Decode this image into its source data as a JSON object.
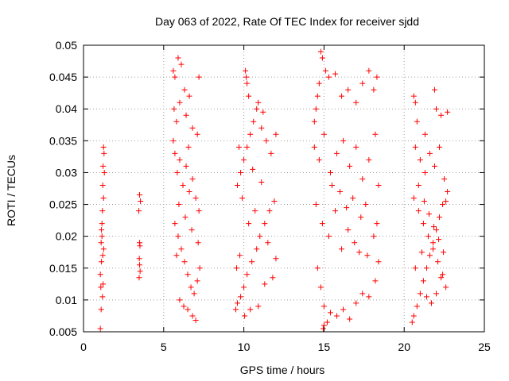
{
  "chart_data": {
    "type": "scatter",
    "title": "Day 063 of 2022, Rate Of TEC Index for receiver sjdd",
    "xlabel": "GPS time / hours",
    "ylabel": "ROTI / TECUs",
    "xlim": [
      0,
      25
    ],
    "ylim": [
      0.005,
      0.05
    ],
    "x_ticks": [
      "0",
      "5",
      "10",
      "15",
      "20",
      "25"
    ],
    "y_ticks": [
      "0.005",
      "0.01",
      "0.015",
      "0.02",
      "0.025",
      "0.03",
      "0.035",
      "0.04",
      "0.045",
      "0.05"
    ],
    "grid": true,
    "marker": "+",
    "color": "#ff0000",
    "series": [
      {
        "points": [
          [
            1.05,
            0.0055
          ],
          [
            1.1,
            0.0085
          ],
          [
            1.08,
            0.012
          ],
          [
            1.12,
            0.016
          ],
          [
            1.15,
            0.02
          ],
          [
            1.18,
            0.024
          ],
          [
            1.2,
            0.028
          ],
          [
            1.22,
            0.031
          ],
          [
            1.25,
            0.034
          ],
          [
            1.1,
            0.019
          ],
          [
            1.15,
            0.022
          ],
          [
            1.2,
            0.017
          ],
          [
            1.25,
            0.026
          ],
          [
            1.3,
            0.03
          ],
          [
            1.28,
            0.033
          ],
          [
            1.05,
            0.014
          ],
          [
            1.12,
            0.021
          ],
          [
            1.18,
            0.0105
          ],
          [
            1.22,
            0.0125
          ],
          [
            1.26,
            0.018
          ],
          [
            3.5,
            0.0265
          ],
          [
            3.55,
            0.0255
          ],
          [
            3.45,
            0.024
          ],
          [
            3.5,
            0.019
          ],
          [
            3.52,
            0.0185
          ],
          [
            3.48,
            0.0165
          ],
          [
            3.5,
            0.0155
          ],
          [
            3.53,
            0.0145
          ],
          [
            3.47,
            0.0135
          ],
          [
            5.6,
            0.046
          ],
          [
            5.7,
            0.045
          ],
          [
            5.9,
            0.048
          ],
          [
            6.1,
            0.047
          ],
          [
            6.3,
            0.043
          ],
          [
            6.6,
            0.042
          ],
          [
            7.2,
            0.045
          ],
          [
            5.65,
            0.04
          ],
          [
            5.8,
            0.038
          ],
          [
            6.0,
            0.041
          ],
          [
            6.4,
            0.039
          ],
          [
            6.8,
            0.037
          ],
          [
            7.1,
            0.036
          ],
          [
            5.6,
            0.035
          ],
          [
            5.7,
            0.033
          ],
          [
            5.85,
            0.03
          ],
          [
            6.0,
            0.032
          ],
          [
            6.2,
            0.028
          ],
          [
            6.4,
            0.031
          ],
          [
            6.6,
            0.027
          ],
          [
            6.8,
            0.029
          ],
          [
            7.0,
            0.026
          ],
          [
            7.2,
            0.024
          ],
          [
            5.7,
            0.022
          ],
          [
            5.9,
            0.02
          ],
          [
            6.1,
            0.018
          ],
          [
            6.3,
            0.016
          ],
          [
            6.5,
            0.014
          ],
          [
            6.7,
            0.012
          ],
          [
            6.9,
            0.011
          ],
          [
            7.1,
            0.013
          ],
          [
            7.25,
            0.015
          ],
          [
            5.8,
            0.017
          ],
          [
            6.0,
            0.01
          ],
          [
            6.25,
            0.009
          ],
          [
            6.5,
            0.0085
          ],
          [
            6.8,
            0.0075
          ],
          [
            7.0,
            0.0068
          ],
          [
            5.95,
            0.025
          ],
          [
            6.35,
            0.023
          ],
          [
            6.75,
            0.021
          ],
          [
            7.15,
            0.019
          ],
          [
            6.55,
            0.034
          ],
          [
            9.5,
            0.0085
          ],
          [
            9.6,
            0.0095
          ],
          [
            9.8,
            0.0105
          ],
          [
            10.0,
            0.012
          ],
          [
            10.2,
            0.014
          ],
          [
            10.5,
            0.016
          ],
          [
            10.8,
            0.018
          ],
          [
            11.0,
            0.02
          ],
          [
            11.3,
            0.022
          ],
          [
            11.6,
            0.024
          ],
          [
            11.9,
            0.0255
          ],
          [
            9.6,
            0.028
          ],
          [
            9.8,
            0.03
          ],
          [
            10.0,
            0.032
          ],
          [
            10.2,
            0.034
          ],
          [
            10.4,
            0.036
          ],
          [
            10.6,
            0.038
          ],
          [
            10.8,
            0.04
          ],
          [
            11.1,
            0.037
          ],
          [
            11.4,
            0.035
          ],
          [
            11.7,
            0.033
          ],
          [
            12.0,
            0.036
          ],
          [
            10.1,
            0.046
          ],
          [
            10.15,
            0.045
          ],
          [
            10.2,
            0.044
          ],
          [
            10.3,
            0.042
          ],
          [
            10.9,
            0.041
          ],
          [
            11.2,
            0.0395
          ],
          [
            9.7,
            0.034
          ],
          [
            9.9,
            0.026
          ],
          [
            10.3,
            0.022
          ],
          [
            10.7,
            0.024
          ],
          [
            11.5,
            0.019
          ],
          [
            9.55,
            0.015
          ],
          [
            9.75,
            0.017
          ],
          [
            10.05,
            0.0075
          ],
          [
            10.4,
            0.0085
          ],
          [
            10.9,
            0.009
          ],
          [
            11.3,
            0.0125
          ],
          [
            11.8,
            0.0135
          ],
          [
            12.0,
            0.0165
          ],
          [
            11.1,
            0.0285
          ],
          [
            10.55,
            0.0305
          ],
          [
            14.4,
            0.038
          ],
          [
            14.5,
            0.04
          ],
          [
            14.6,
            0.042
          ],
          [
            14.7,
            0.044
          ],
          [
            14.8,
            0.049
          ],
          [
            14.9,
            0.048
          ],
          [
            15.1,
            0.046
          ],
          [
            15.3,
            0.045
          ],
          [
            15.7,
            0.0455
          ],
          [
            16.1,
            0.042
          ],
          [
            16.5,
            0.043
          ],
          [
            17.0,
            0.041
          ],
          [
            17.4,
            0.044
          ],
          [
            17.8,
            0.046
          ],
          [
            18.1,
            0.043
          ],
          [
            18.3,
            0.045
          ],
          [
            14.4,
            0.034
          ],
          [
            14.7,
            0.032
          ],
          [
            15.0,
            0.036
          ],
          [
            15.4,
            0.03
          ],
          [
            15.8,
            0.033
          ],
          [
            16.2,
            0.035
          ],
          [
            16.6,
            0.031
          ],
          [
            17.0,
            0.034
          ],
          [
            17.4,
            0.029
          ],
          [
            17.8,
            0.032
          ],
          [
            18.2,
            0.036
          ],
          [
            18.4,
            0.028
          ],
          [
            14.5,
            0.025
          ],
          [
            14.9,
            0.022
          ],
          [
            15.3,
            0.02
          ],
          [
            15.7,
            0.024
          ],
          [
            16.1,
            0.018
          ],
          [
            16.5,
            0.021
          ],
          [
            16.9,
            0.019
          ],
          [
            17.3,
            0.023
          ],
          [
            17.7,
            0.017
          ],
          [
            18.1,
            0.02
          ],
          [
            18.4,
            0.016
          ],
          [
            14.6,
            0.015
          ],
          [
            14.8,
            0.012
          ],
          [
            15.0,
            0.009
          ],
          [
            15.2,
            0.0065
          ],
          [
            15.0,
            0.006
          ],
          [
            14.95,
            0.0055
          ],
          [
            15.4,
            0.008
          ],
          [
            15.8,
            0.0075
          ],
          [
            16.2,
            0.0085
          ],
          [
            16.6,
            0.007
          ],
          [
            17.0,
            0.0095
          ],
          [
            17.4,
            0.011
          ],
          [
            17.8,
            0.0105
          ],
          [
            18.2,
            0.013
          ],
          [
            16.0,
            0.027
          ],
          [
            16.8,
            0.026
          ],
          [
            17.6,
            0.025
          ],
          [
            18.3,
            0.022
          ],
          [
            15.5,
            0.028
          ],
          [
            16.4,
            0.0245
          ],
          [
            17.2,
            0.0175
          ],
          [
            20.5,
            0.0065
          ],
          [
            20.6,
            0.0075
          ],
          [
            20.8,
            0.009
          ],
          [
            21.0,
            0.011
          ],
          [
            21.2,
            0.013
          ],
          [
            21.4,
            0.015
          ],
          [
            21.6,
            0.017
          ],
          [
            21.8,
            0.019
          ],
          [
            22.0,
            0.021
          ],
          [
            22.2,
            0.023
          ],
          [
            22.4,
            0.025
          ],
          [
            22.6,
            0.0255
          ],
          [
            20.6,
            0.042
          ],
          [
            20.7,
            0.041
          ],
          [
            20.8,
            0.038
          ],
          [
            21.3,
            0.036
          ],
          [
            21.9,
            0.043
          ],
          [
            22.0,
            0.04
          ],
          [
            22.3,
            0.039
          ],
          [
            22.7,
            0.0395
          ],
          [
            20.7,
            0.034
          ],
          [
            21.0,
            0.032
          ],
          [
            21.3,
            0.03
          ],
          [
            21.6,
            0.033
          ],
          [
            21.9,
            0.031
          ],
          [
            22.2,
            0.034
          ],
          [
            22.5,
            0.029
          ],
          [
            22.7,
            0.027
          ],
          [
            20.6,
            0.026
          ],
          [
            20.9,
            0.024
          ],
          [
            21.2,
            0.022
          ],
          [
            21.5,
            0.02
          ],
          [
            21.8,
            0.018
          ],
          [
            22.1,
            0.016
          ],
          [
            22.4,
            0.014
          ],
          [
            22.6,
            0.012
          ],
          [
            20.7,
            0.015
          ],
          [
            21.1,
            0.0175
          ],
          [
            21.4,
            0.0105
          ],
          [
            21.7,
            0.0095
          ],
          [
            22.0,
            0.011
          ],
          [
            22.3,
            0.0135
          ],
          [
            20.9,
            0.028
          ],
          [
            21.25,
            0.0255
          ],
          [
            21.55,
            0.0235
          ],
          [
            21.85,
            0.0215
          ],
          [
            22.15,
            0.0195
          ],
          [
            22.45,
            0.0175
          ]
        ]
      }
    ]
  }
}
